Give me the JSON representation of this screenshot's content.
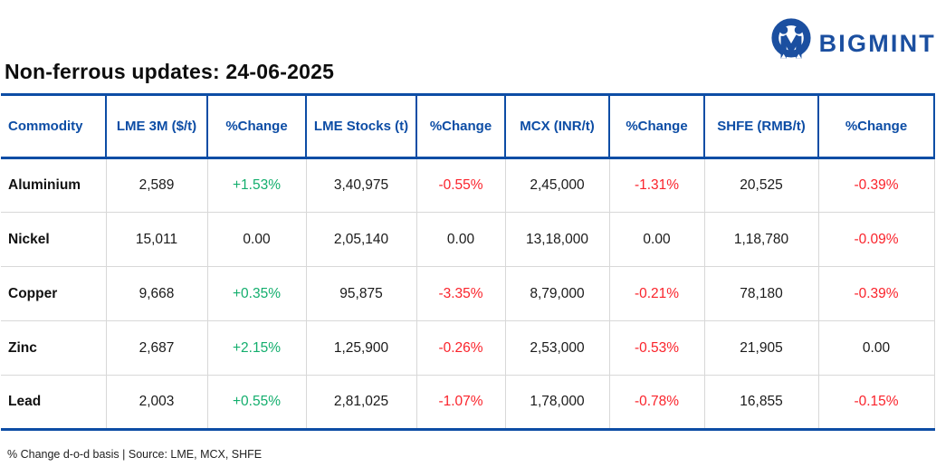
{
  "title": "Non-ferrous updates: 24-06-2025",
  "logo": {
    "text": "BIGMINT",
    "icon": "bigmint-people-m-icon"
  },
  "colors": {
    "brand_blue": "#0d4da5",
    "logo_blue": "#1b4fa0",
    "positive_green": "#13ae6d",
    "negative_red": "#fa232b",
    "text_black": "#1a1a1a",
    "grid_gray": "#d8d8d8"
  },
  "chart_data": {
    "type": "table",
    "title": "Non-ferrous updates: 24-06-2025",
    "columns": [
      "Commodity",
      "LME 3M ($/t)",
      "%Change",
      "LME Stocks (t)",
      "%Change",
      "MCX (INR/t)",
      "%Change",
      "SHFE (RMB/t)",
      "%Change"
    ],
    "change_column_indexes": [
      2,
      4,
      6,
      8
    ],
    "rows": [
      [
        "Aluminium",
        "2,589",
        "+1.53%",
        "3,40,975",
        "-0.55%",
        "2,45,000",
        "-1.31%",
        "20,525",
        "-0.39%"
      ],
      [
        "Nickel",
        "15,011",
        "0.00",
        "2,05,140",
        "0.00",
        "13,18,000",
        "0.00",
        "1,18,780",
        "-0.09%"
      ],
      [
        "Copper",
        "9,668",
        "+0.35%",
        "95,875",
        "-3.35%",
        "8,79,000",
        "-0.21%",
        "78,180",
        "-0.39%"
      ],
      [
        "Zinc",
        "2,687",
        "+2.15%",
        "1,25,900",
        "-0.26%",
        "2,53,000",
        "-0.53%",
        "21,905",
        "0.00"
      ],
      [
        "Lead",
        "2,003",
        "+0.55%",
        "2,81,025",
        "-1.07%",
        "1,78,000",
        "-0.78%",
        "16,855",
        "-0.15%"
      ]
    ],
    "footnote": "% Change d-o-d basis | Source: LME, MCX, SHFE"
  },
  "footer": {
    "note": "% Change d-o-d basis | Source: LME, MCX, SHFE"
  }
}
